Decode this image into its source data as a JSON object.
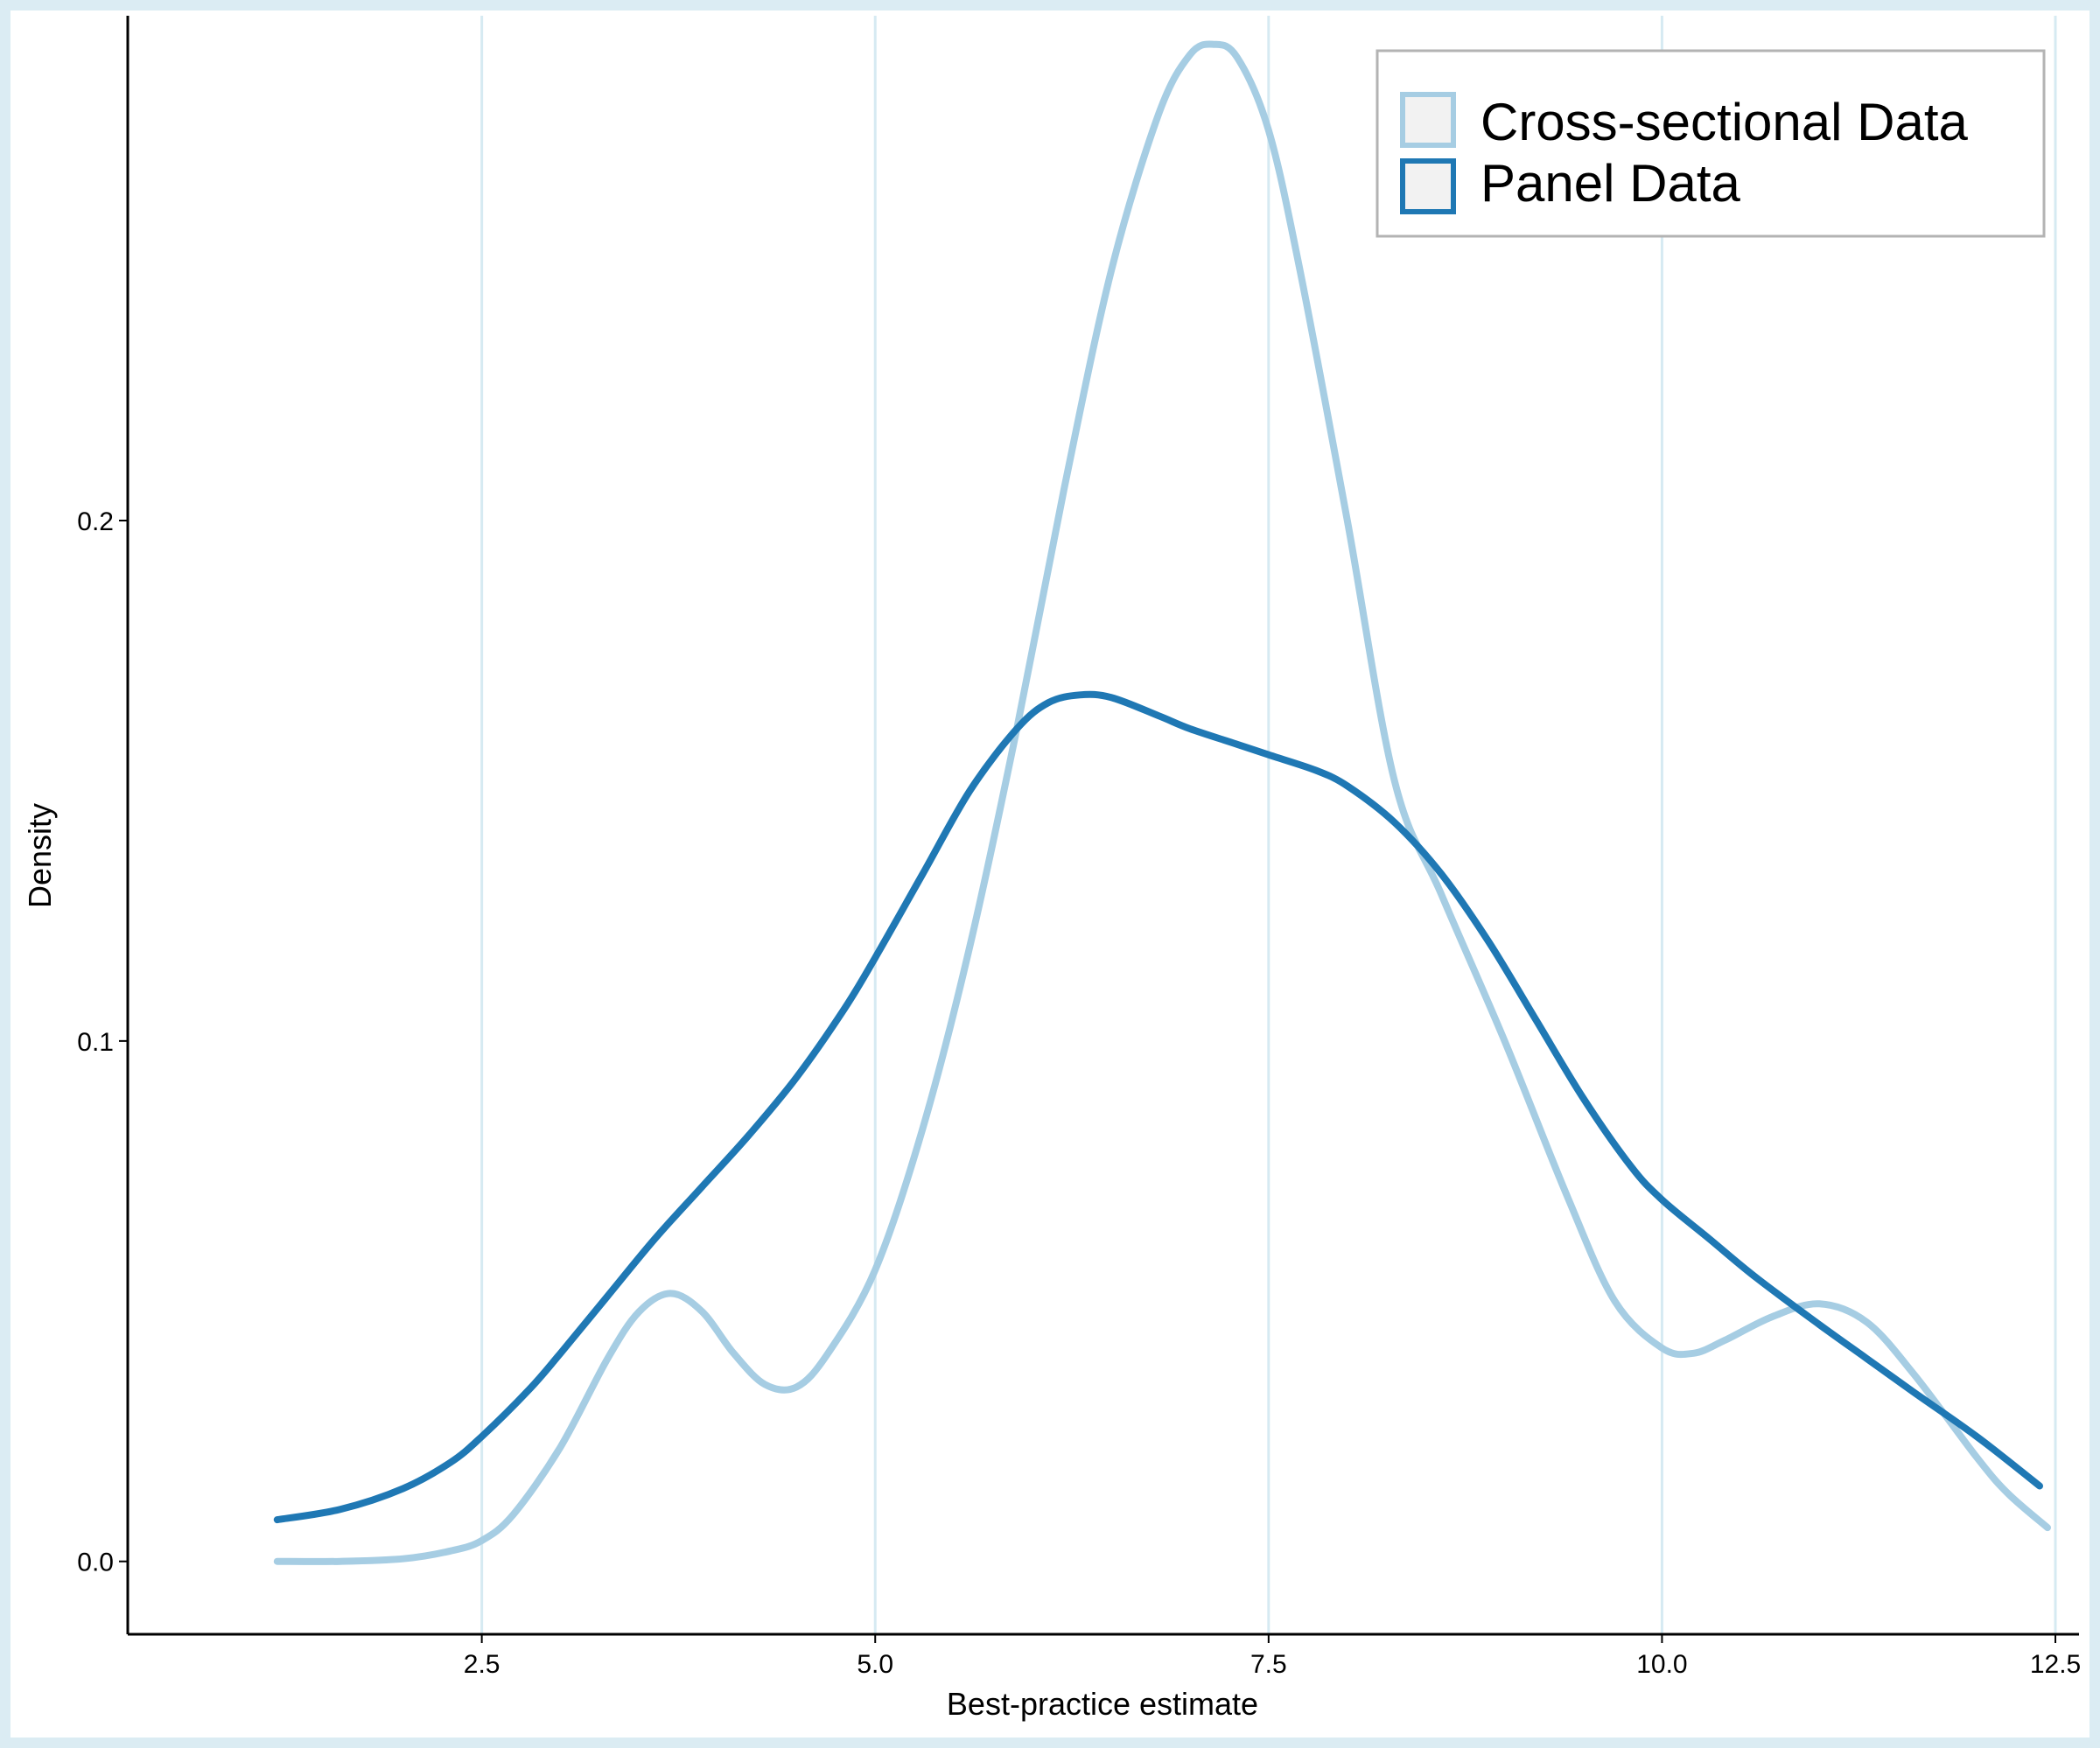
{
  "chart_data": {
    "type": "line",
    "xlabel": "Best-practice estimate",
    "ylabel": "Density",
    "xlim": [
      0.25,
      12.65
    ],
    "ylim": [
      -0.014,
      0.297
    ],
    "xticks": [
      2.5,
      5.0,
      7.5,
      10.0,
      12.5
    ],
    "xtick_labels": [
      "2.5",
      "5.0",
      "7.5",
      "10.0",
      "12.5"
    ],
    "yticks": [
      0.0,
      0.1,
      0.2
    ],
    "ytick_labels": [
      "0.0",
      "0.1",
      "0.2"
    ],
    "grid": "vertical",
    "legend_position": "top-right",
    "series": [
      {
        "name": "Cross-sectional Data",
        "color": "#a6cde3",
        "x": [
          1.2,
          1.6,
          2.0,
          2.3,
          2.5,
          2.7,
          3.0,
          3.3,
          3.5,
          3.7,
          3.9,
          4.1,
          4.3,
          4.5,
          4.7,
          5.0,
          5.3,
          5.6,
          5.9,
          6.2,
          6.5,
          6.8,
          7.0,
          7.15,
          7.3,
          7.5,
          7.7,
          8.0,
          8.3,
          8.6,
          9.0,
          9.4,
          9.7,
          10.0,
          10.2,
          10.4,
          10.7,
          11.0,
          11.3,
          11.6,
          12.0,
          12.2,
          12.45
        ],
        "y": [
          0.0,
          0.0,
          0.0005,
          0.002,
          0.004,
          0.009,
          0.022,
          0.039,
          0.048,
          0.0515,
          0.048,
          0.04,
          0.034,
          0.0335,
          0.04,
          0.056,
          0.083,
          0.118,
          0.16,
          0.206,
          0.248,
          0.278,
          0.2895,
          0.2915,
          0.289,
          0.275,
          0.248,
          0.2,
          0.15,
          0.128,
          0.1,
          0.07,
          0.05,
          0.041,
          0.04,
          0.0425,
          0.047,
          0.0495,
          0.046,
          0.036,
          0.02,
          0.013,
          0.0065
        ]
      },
      {
        "name": "Panel Data",
        "color": "#1f78b4",
        "x": [
          1.2,
          1.6,
          2.0,
          2.3,
          2.5,
          2.8,
          3.0,
          3.3,
          3.6,
          3.9,
          4.2,
          4.5,
          4.8,
          5.0,
          5.3,
          5.6,
          5.9,
          6.1,
          6.3,
          6.5,
          6.8,
          7.0,
          7.3,
          7.5,
          7.8,
          8.0,
          8.3,
          8.6,
          8.9,
          9.2,
          9.5,
          9.8,
          10.0,
          10.3,
          10.6,
          11.0,
          11.3,
          11.6,
          12.0,
          12.4
        ],
        "y": [
          0.008,
          0.01,
          0.014,
          0.019,
          0.024,
          0.033,
          0.04,
          0.051,
          0.062,
          0.072,
          0.082,
          0.093,
          0.106,
          0.116,
          0.132,
          0.148,
          0.16,
          0.165,
          0.1665,
          0.166,
          0.1625,
          0.16,
          0.157,
          0.155,
          0.152,
          0.149,
          0.142,
          0.132,
          0.119,
          0.104,
          0.089,
          0.076,
          0.0695,
          0.062,
          0.0545,
          0.0455,
          0.039,
          0.0325,
          0.024,
          0.0145
        ]
      }
    ]
  }
}
